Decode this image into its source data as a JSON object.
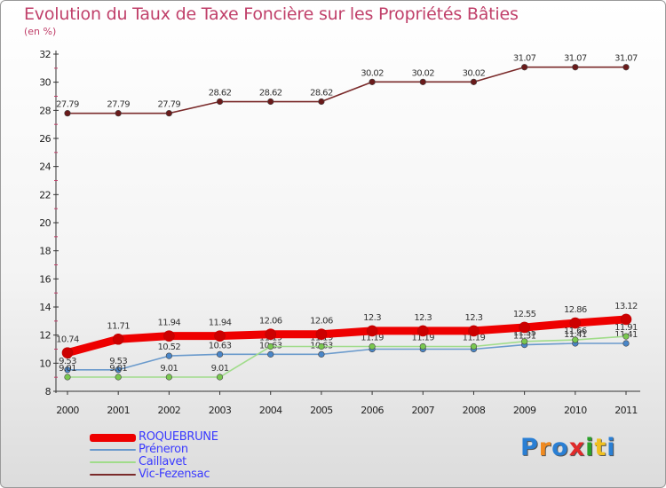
{
  "title": "Evolution du Taux de Taxe Foncière sur les Propriétés Bâties",
  "unit_label": "(en %)",
  "logo": {
    "text": "Proxiti",
    "letters": [
      {
        "ch": "P",
        "color": "#2a7fd4"
      },
      {
        "ch": "r",
        "color": "#f08a20"
      },
      {
        "ch": "o",
        "color": "#2a7fd4"
      },
      {
        "ch": "x",
        "color": "#e02a2a"
      },
      {
        "ch": "i",
        "color": "#2aa02a"
      },
      {
        "ch": "t",
        "color": "#f0c020"
      },
      {
        "ch": "i",
        "color": "#2a7fd4"
      }
    ]
  },
  "chart_data": {
    "type": "line",
    "title": "Evolution du Taux de Taxe Foncière sur les Propriétés Bâties",
    "ylabel": "(en %)",
    "x": [
      "2000",
      "2001",
      "2002",
      "2003",
      "2004",
      "2005",
      "2006",
      "2007",
      "2008",
      "2009",
      "2010",
      "2011"
    ],
    "ylim": [
      8,
      32
    ],
    "yticks": [
      8,
      10,
      12,
      14,
      16,
      18,
      20,
      22,
      24,
      26,
      28,
      30,
      32
    ],
    "series": [
      {
        "name": "Vic-Fezensac",
        "color": "#7a2a2a",
        "marker": "#6a1a1a",
        "values": [
          27.79,
          27.79,
          27.79,
          28.62,
          28.62,
          28.62,
          30.02,
          30.02,
          30.02,
          31.07,
          31.07,
          31.07
        ],
        "labels": [
          "27.79",
          "27.79",
          "27.79",
          "28.62",
          "28.62",
          "28.62",
          "30.02",
          "30.02",
          "30.02",
          "31.07",
          "31.07",
          "31.07"
        ]
      },
      {
        "name": "Préneron",
        "color": "#6a9acc",
        "marker": "#4a86c8",
        "values": [
          9.53,
          9.53,
          10.52,
          10.63,
          10.63,
          10.63,
          11.0,
          11.0,
          11.0,
          11.31,
          11.41,
          11.41
        ],
        "labels": [
          "9.53",
          "9.53",
          "10.52",
          "10.63",
          "10.63",
          "10.63",
          "",
          "",
          "",
          "11.31",
          "11.41",
          "11.41"
        ]
      },
      {
        "name": "Caillavet",
        "color": "#a0dc8a",
        "marker": "#7ac850",
        "values": [
          9.01,
          9.01,
          9.01,
          9.01,
          11.19,
          11.19,
          11.19,
          11.19,
          11.19,
          11.55,
          11.66,
          11.91
        ],
        "labels": [
          "9.01",
          "9.01",
          "9.01",
          "9.01",
          "11.19",
          "11.19",
          "11.19",
          "11.19",
          "11.19",
          "11.55",
          "11.66",
          "11.91"
        ]
      },
      {
        "name": "ROQUEBRUNE",
        "color": "#ee0000",
        "marker": "#cc0000",
        "values": [
          10.74,
          11.71,
          11.94,
          11.94,
          12.06,
          12.06,
          12.3,
          12.3,
          12.3,
          12.55,
          12.86,
          13.12
        ],
        "labels": [
          "10.74",
          "11.71",
          "11.94",
          "11.94",
          "12.06",
          "12.06",
          "12.3",
          "12.3",
          "12.3",
          "12.55",
          "12.86",
          "13.12"
        ]
      }
    ],
    "legend": [
      {
        "name": "ROQUEBRUNE",
        "color": "#ee0000",
        "thick": true
      },
      {
        "name": "Préneron",
        "color": "#6a9acc",
        "thick": false
      },
      {
        "name": "Caillavet",
        "color": "#a0dc8a",
        "thick": false
      },
      {
        "name": "Vic-Fezensac",
        "color": "#7a2a2a",
        "thick": false
      }
    ]
  }
}
